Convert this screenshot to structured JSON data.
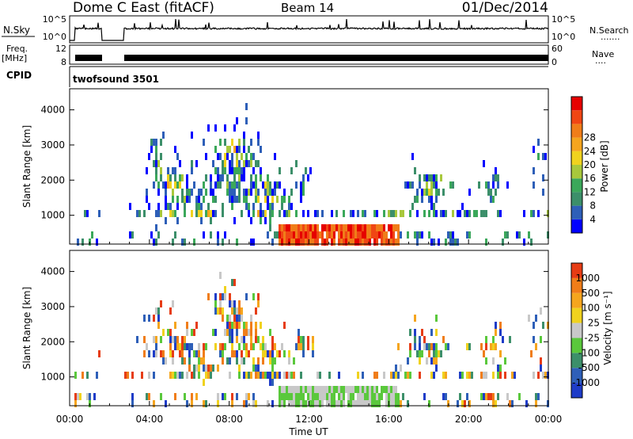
{
  "header": {
    "station": "Dome C East (fitACF)",
    "beam": "Beam 14",
    "date": "01/Dec/2014"
  },
  "strips": {
    "nsky_label": "N.Sky",
    "nsky_ticks": [
      "10^5",
      "10^0"
    ],
    "nsearch_label": "N.Search",
    "freq_label_1": "Freq.",
    "freq_label_2": "[MHz]",
    "freq_ticks": [
      "12",
      "8"
    ],
    "nave_label": "Nave",
    "nave_ticks": [
      "60",
      "0"
    ],
    "cpid_label": "CPID",
    "cpid_value": "twofsound 3501"
  },
  "chart_data": [
    {
      "type": "heatmap",
      "title": "",
      "ylabel": "Slant Range [km]",
      "xlabel": "Time UT",
      "x_ticks": [
        "00:00",
        "04:00",
        "08:00",
        "12:00",
        "16:00",
        "20:00",
        "00:00"
      ],
      "x_range_hours": [
        0,
        24
      ],
      "y_ticks": [
        "1000",
        "2000",
        "3000",
        "4000"
      ],
      "y_range_km": [
        180,
        4600
      ],
      "colorbar": {
        "label": "Power [dB]",
        "ticks": [
          "4",
          "8",
          "12",
          "16",
          "20",
          "24",
          "28"
        ],
        "colors": [
          "#0000ff",
          "#2e5fb8",
          "#3c8f6a",
          "#3ba85a",
          "#a8c83c",
          "#f0d21e",
          "#f5a51e",
          "#f07d19",
          "#f04614",
          "#e60000"
        ]
      },
      "data_gaps_hours": [
        [
          0.0,
          0.25
        ],
        [
          1.6,
          2.7
        ]
      ]
    },
    {
      "type": "heatmap",
      "title": "",
      "ylabel": "Slant Range [km]",
      "xlabel": "Time UT",
      "x_ticks": [
        "00:00",
        "04:00",
        "08:00",
        "12:00",
        "16:00",
        "20:00",
        "00:00"
      ],
      "x_range_hours": [
        0,
        24
      ],
      "y_ticks": [
        "1000",
        "2000",
        "3000",
        "4000"
      ],
      "y_range_km": [
        180,
        4600
      ],
      "colorbar": {
        "label": "Velocity [m s⁻¹]",
        "ticks": [
          "1000",
          "500",
          "100",
          "25",
          "-25",
          "-100",
          "-500",
          "-1000"
        ],
        "colors": [
          "#1e3cc8",
          "#2e5fb8",
          "#3c8f6a",
          "#5ac83c",
          "#c8c8c8",
          "#f0d21e",
          "#f5a51e",
          "#f07d19",
          "#e63c14"
        ]
      },
      "data_gaps_hours": [
        [
          0.0,
          0.25
        ],
        [
          1.6,
          2.7
        ]
      ]
    }
  ]
}
